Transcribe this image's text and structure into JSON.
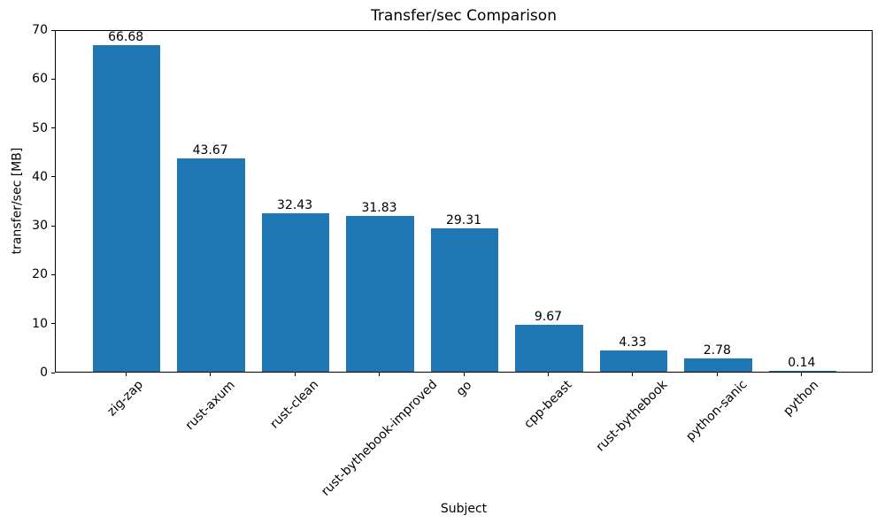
{
  "chart_data": {
    "type": "bar",
    "title": "Transfer/sec Comparison",
    "xlabel": "Subject",
    "ylabel": "transfer/sec [MB]",
    "categories": [
      "zig-zap",
      "rust-axum",
      "rust-clean",
      "rust-bythebook-improved",
      "go",
      "cpp-beast",
      "rust-bythebook",
      "python-sanic",
      "python"
    ],
    "values": [
      66.68,
      43.67,
      32.43,
      31.83,
      29.31,
      9.67,
      4.33,
      2.78,
      0.14
    ],
    "bar_value_labels": [
      "66.68",
      "43.67",
      "32.43",
      "31.83",
      "29.31",
      "9.67",
      "4.33",
      "2.78",
      "0.14"
    ],
    "ylim": [
      0,
      70
    ],
    "yticks": [
      0,
      10,
      20,
      30,
      40,
      50,
      60,
      70
    ],
    "x_tick_rotation_deg": 45,
    "bar_color": "#1f77b4",
    "axis_color": "#000000",
    "background_color": "#ffffff",
    "grid": false,
    "legend": "none"
  }
}
